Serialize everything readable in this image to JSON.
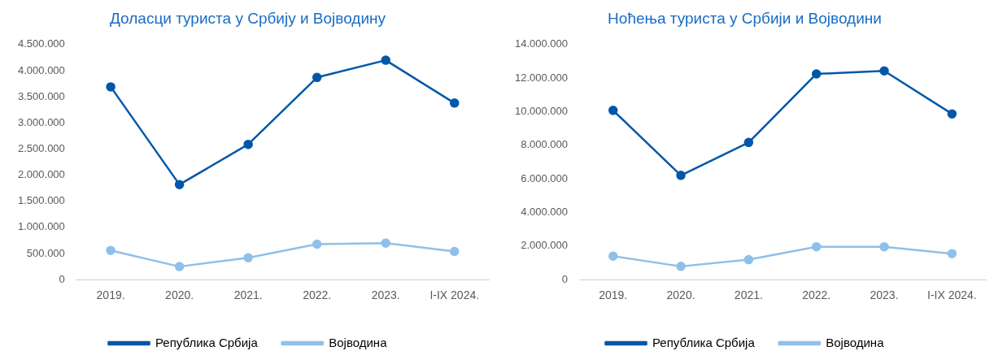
{
  "chart_data": [
    {
      "type": "line",
      "title": "Доласци туриста у Србију и Војводину",
      "categories": [
        "2019.",
        "2020.",
        "2021.",
        "2022.",
        "2023.",
        "I-IX 2024."
      ],
      "series": [
        {
          "name": "Република Србија",
          "color": "#0057a8",
          "values": [
            3690000,
            1820000,
            2590000,
            3870000,
            4200000,
            3380000
          ]
        },
        {
          "name": "Војводина",
          "color": "#8fc0ea",
          "values": [
            560000,
            250000,
            420000,
            680000,
            700000,
            540000
          ]
        }
      ],
      "ylim": [
        0,
        4500000
      ],
      "yticks": [
        {
          "value": 0,
          "label": "0"
        },
        {
          "value": 500000,
          "label": "500.000"
        },
        {
          "value": 1000000,
          "label": "1.000.000"
        },
        {
          "value": 1500000,
          "label": "1.500.000"
        },
        {
          "value": 2000000,
          "label": "2.000.000"
        },
        {
          "value": 2500000,
          "label": "2.500.000"
        },
        {
          "value": 3000000,
          "label": "3.000.000"
        },
        {
          "value": 3500000,
          "label": "3.500.000"
        },
        {
          "value": 4000000,
          "label": "4.000.000"
        },
        {
          "value": 4500000,
          "label": "4.500.000"
        }
      ],
      "grid": false,
      "legend": "bottom",
      "marker": "circle",
      "line_style": "solid"
    },
    {
      "type": "line",
      "title": "Ноћења туриста у Србији и Војводини",
      "categories": [
        "2019.",
        "2020.",
        "2021.",
        "2022.",
        "2023.",
        "I-IX 2024."
      ],
      "series": [
        {
          "name": "Република Србија",
          "color": "#0057a8",
          "values": [
            10080000,
            6210000,
            8170000,
            12250000,
            12430000,
            9870000
          ]
        },
        {
          "name": "Војводина",
          "color": "#8fc0ea",
          "values": [
            1400000,
            790000,
            1190000,
            1960000,
            1960000,
            1550000
          ]
        }
      ],
      "ylim": [
        0,
        14000000
      ],
      "yticks": [
        {
          "value": 0,
          "label": "0"
        },
        {
          "value": 2000000,
          "label": "2.000.000"
        },
        {
          "value": 4000000,
          "label": "4.000.000"
        },
        {
          "value": 6000000,
          "label": "6.000.000"
        },
        {
          "value": 8000000,
          "label": "8.000.000"
        },
        {
          "value": 10000000,
          "label": "10.000.000"
        },
        {
          "value": 12000000,
          "label": "12.000.000"
        },
        {
          "value": 14000000,
          "label": "14.000.000"
        }
      ],
      "grid": false,
      "legend": "bottom",
      "marker": "circle",
      "line_style": "solid"
    }
  ]
}
